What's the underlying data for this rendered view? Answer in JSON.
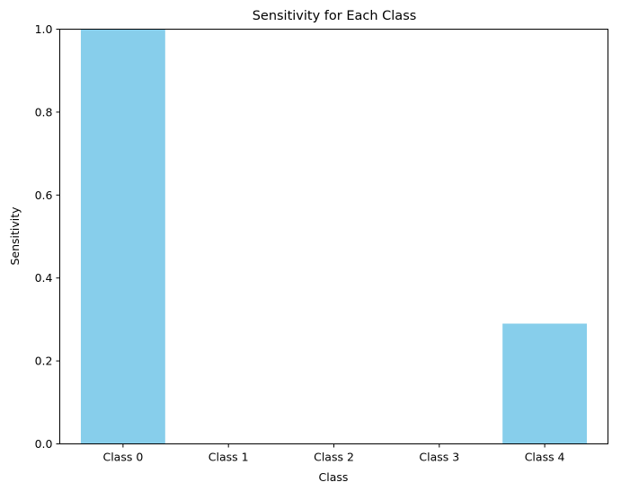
{
  "chart_data": {
    "type": "bar",
    "title": "Sensitivity for Each Class",
    "xlabel": "Class",
    "ylabel": "Sensitivity",
    "categories": [
      "Class 0",
      "Class 1",
      "Class 2",
      "Class 3",
      "Class 4"
    ],
    "values": [
      1.0,
      0.0,
      0.0,
      0.0,
      0.29
    ],
    "ylim": [
      0,
      1.0
    ],
    "yticks": [
      0.0,
      0.2,
      0.4,
      0.6,
      0.8,
      1.0
    ],
    "ytick_labels": [
      "0.0",
      "0.2",
      "0.4",
      "0.6",
      "0.8",
      "1.0"
    ],
    "bar_color": "#87ceeb",
    "grid": false
  }
}
